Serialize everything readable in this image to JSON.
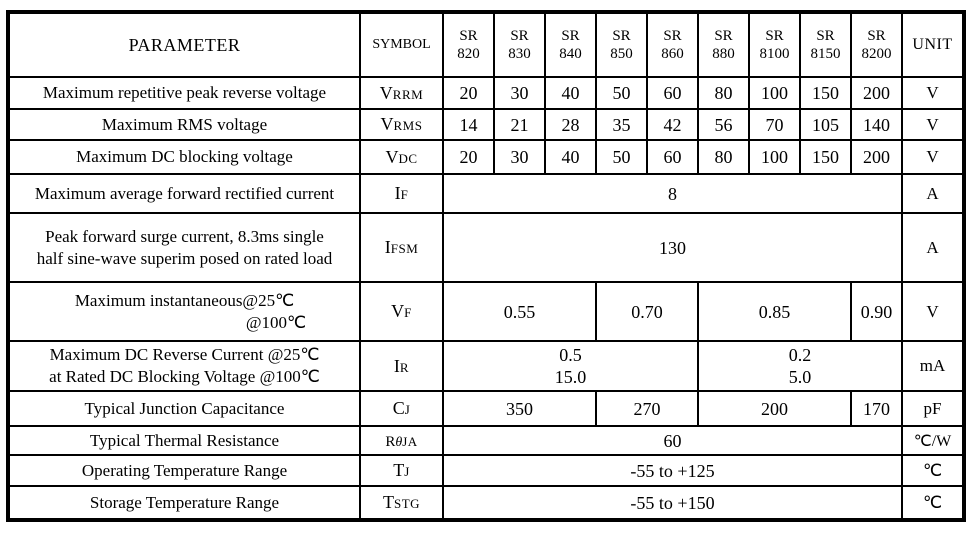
{
  "header": {
    "parameter": "PARAMETER",
    "symbol": "SYMBOL",
    "unit": "UNIT",
    "models": [
      {
        "line1": "SR",
        "line2": "820"
      },
      {
        "line1": "SR",
        "line2": "830"
      },
      {
        "line1": "SR",
        "line2": "840"
      },
      {
        "line1": "SR",
        "line2": "850"
      },
      {
        "line1": "SR",
        "line2": "860"
      },
      {
        "line1": "SR",
        "line2": "880"
      },
      {
        "line1": "SR",
        "line2": "8100"
      },
      {
        "line1": "SR",
        "line2": "8150"
      },
      {
        "line1": "SR",
        "line2": "8200"
      }
    ]
  },
  "rows": {
    "vrrm": {
      "param": "Maximum repetitive peak reverse voltage",
      "sym_main": "V",
      "sym_sub": "RRM",
      "v0": "20",
      "v1": "30",
      "v2": "40",
      "v3": "50",
      "v4": "60",
      "v5": "80",
      "v6": "100",
      "v7": "150",
      "v8": "200",
      "unit": "V"
    },
    "vrms": {
      "param": "Maximum RMS voltage",
      "sym_main": "V",
      "sym_sub": "RMS",
      "v0": "14",
      "v1": "21",
      "v2": "28",
      "v3": "35",
      "v4": "42",
      "v5": "56",
      "v6": "70",
      "v7": "105",
      "v8": "140",
      "unit": "V"
    },
    "vdc": {
      "param": "Maximum DC blocking voltage",
      "sym_main": "V",
      "sym_sub": "DC",
      "v0": "20",
      "v1": "30",
      "v2": "40",
      "v3": "50",
      "v4": "60",
      "v5": "80",
      "v6": "100",
      "v7": "150",
      "v8": "200",
      "unit": "V"
    },
    "if": {
      "param": "Maximum average forward rectified current",
      "sym_main": "I",
      "sym_sub": "F",
      "value": "8",
      "unit": "A"
    },
    "ifsm": {
      "param_line1": "Peak forward surge current, 8.3ms single",
      "param_line2": "half sine-wave superim posed on rated load",
      "sym_main": "I",
      "sym_sub": "FSM",
      "value": "130",
      "unit": "A"
    },
    "vf": {
      "param_line1": "Maximum instantaneous@25℃",
      "param_line2": "@100℃",
      "sym_main": "V",
      "sym_sub": "F",
      "v1": "0.55",
      "v2": "0.70",
      "v3": "0.85",
      "v4": "0.90",
      "unit": "V"
    },
    "ir": {
      "param_line1": "Maximum DC Reverse Current @25℃",
      "param_line2": "at Rated DC Blocking Voltage @100℃",
      "sym_main": "I",
      "sym_sub": "R",
      "v1_line1": "0.5",
      "v1_line2": "15.0",
      "v2_line1": "0.2",
      "v2_line2": "5.0",
      "unit": "mA"
    },
    "cj": {
      "param": "Typical Junction Capacitance",
      "sym_main": "C",
      "sym_sub": "J",
      "v1": "350",
      "v2": "270",
      "v3": "200",
      "v4": "170",
      "unit": "pF"
    },
    "rthja": {
      "param": "Typical Thermal Resistance",
      "sym_main": "R",
      "sym_theta": "θ",
      "sym_sub": "JA",
      "value": "60",
      "unit": "℃/W"
    },
    "tj": {
      "param": "Operating Temperature Range",
      "sym_main": "T",
      "sym_sub": "J",
      "value": "-55 to +125",
      "unit": "℃"
    },
    "tstg": {
      "param": "Storage Temperature Range",
      "sym_main": "T",
      "sym_sub": "STG",
      "value": "-55 to +150",
      "unit": "℃"
    }
  }
}
